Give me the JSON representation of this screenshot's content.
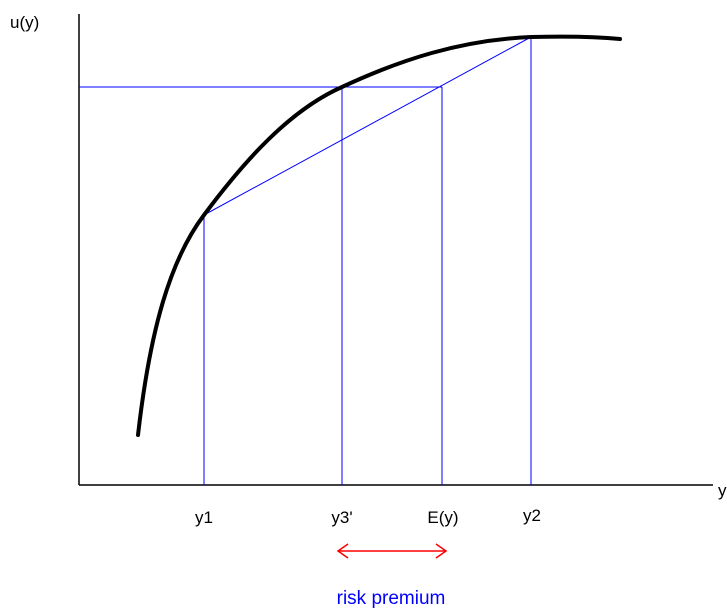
{
  "labels": {
    "y_axis": "u(y)",
    "x_axis": "y",
    "y1": "y1",
    "y3": "y3'",
    "ey": "E(y)",
    "y2": "y2",
    "risk_premium": "risk premium"
  },
  "colors": {
    "axes": "#000000",
    "curve": "#000000",
    "guides": "#0000ff",
    "arrow": "#ff0000",
    "risk_premium_text": "#0000ff"
  }
}
